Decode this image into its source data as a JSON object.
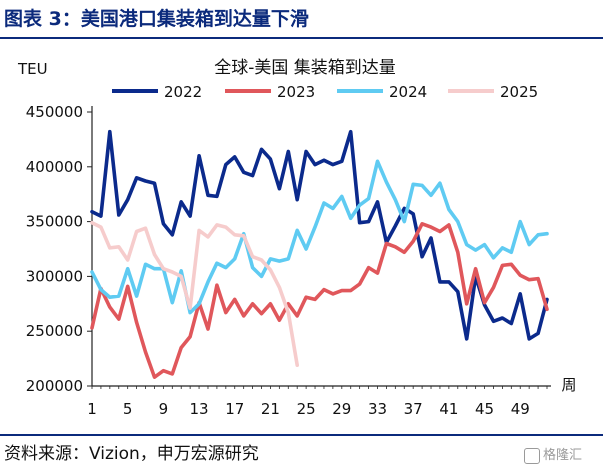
{
  "figure_title": "图表 3：美国港口集装箱到达量下滑",
  "source_text": "资料来源：Vizion，申万宏源研究",
  "watermark_text": "格隆汇",
  "chart_data": {
    "type": "line",
    "title": "全球-美国 集装箱到达量",
    "ylabel": "TEU",
    "xlabel": "周",
    "ylim": [
      200000,
      450000
    ],
    "yticks": [
      200000,
      250000,
      300000,
      350000,
      400000,
      450000
    ],
    "xlim": [
      1,
      52
    ],
    "xticks": [
      1,
      5,
      9,
      13,
      17,
      21,
      25,
      29,
      33,
      37,
      41,
      45,
      49
    ],
    "legend_position": "top",
    "series": [
      {
        "name": "2022",
        "color": "#0b2a8c",
        "x": [
          1,
          2,
          3,
          4,
          5,
          6,
          7,
          8,
          9,
          10,
          11,
          12,
          13,
          14,
          15,
          16,
          17,
          18,
          19,
          20,
          21,
          22,
          23,
          24,
          25,
          26,
          27,
          28,
          29,
          30,
          31,
          32,
          33,
          34,
          35,
          36,
          37,
          38,
          39,
          40,
          41,
          42,
          43,
          44,
          45,
          46,
          47,
          48,
          49,
          50,
          51,
          52
        ],
        "y": [
          359000,
          355000,
          432000,
          356000,
          370000,
          390000,
          387000,
          385000,
          348000,
          338000,
          368000,
          355000,
          410000,
          374000,
          373000,
          402000,
          409000,
          395000,
          392000,
          416000,
          407000,
          380000,
          414000,
          370000,
          414000,
          402000,
          406000,
          402000,
          405000,
          432000,
          349000,
          350000,
          368000,
          331000,
          346000,
          362000,
          357000,
          318000,
          335000,
          295000,
          295000,
          286000,
          243000,
          300000,
          274000,
          259000,
          262000,
          257000,
          284000,
          243000,
          248000,
          279000
        ]
      },
      {
        "name": "2023",
        "color": "#e0575b",
        "x": [
          1,
          2,
          3,
          4,
          5,
          6,
          7,
          8,
          9,
          10,
          11,
          12,
          13,
          14,
          15,
          16,
          17,
          18,
          19,
          20,
          21,
          22,
          23,
          24,
          25,
          26,
          27,
          28,
          29,
          30,
          31,
          32,
          33,
          34,
          35,
          36,
          37,
          38,
          39,
          40,
          41,
          42,
          43,
          44,
          45,
          46,
          47,
          48,
          49,
          50,
          51,
          52
        ],
        "y": [
          253000,
          289000,
          272000,
          261000,
          291000,
          258000,
          231000,
          208000,
          214000,
          211000,
          235000,
          245000,
          276000,
          252000,
          292000,
          267000,
          279000,
          264000,
          275000,
          266000,
          275000,
          260000,
          275000,
          264000,
          281000,
          279000,
          288000,
          284000,
          287000,
          287000,
          293000,
          308000,
          303000,
          330000,
          327000,
          322000,
          332000,
          348000,
          345000,
          341000,
          347000,
          322000,
          275000,
          307000,
          276000,
          290000,
          310000,
          311000,
          301000,
          297000,
          298000,
          270000
        ]
      },
      {
        "name": "2024",
        "color": "#5fcbf2",
        "x": [
          1,
          2,
          3,
          4,
          5,
          6,
          7,
          8,
          9,
          10,
          11,
          12,
          13,
          14,
          15,
          16,
          17,
          18,
          19,
          20,
          21,
          22,
          23,
          24,
          25,
          26,
          27,
          28,
          29,
          30,
          31,
          32,
          33,
          34,
          35,
          36,
          37,
          38,
          39,
          40,
          41,
          42,
          43,
          44,
          45,
          46,
          47,
          48,
          49,
          50,
          51,
          52
        ],
        "y": [
          304000,
          288000,
          281000,
          282000,
          307000,
          282000,
          311000,
          307000,
          307000,
          276000,
          305000,
          267000,
          275000,
          295000,
          312000,
          308000,
          316000,
          339000,
          308000,
          300000,
          316000,
          314000,
          316000,
          342000,
          325000,
          345000,
          367000,
          362000,
          373000,
          353000,
          365000,
          371000,
          405000,
          386000,
          370000,
          350000,
          384000,
          383000,
          374000,
          385000,
          361000,
          350000,
          329000,
          324000,
          329000,
          317000,
          326000,
          322000,
          350000,
          329000,
          338000,
          339000
        ]
      },
      {
        "name": "2025",
        "color": "#f6cccc",
        "x": [
          1,
          2,
          3,
          4,
          5,
          6,
          7,
          8,
          9,
          10,
          11,
          12,
          13,
          14,
          15,
          16,
          17,
          18,
          19,
          20,
          21,
          22,
          23,
          24
        ],
        "y": [
          349000,
          345000,
          326000,
          327000,
          315000,
          341000,
          344000,
          320000,
          307000,
          304000,
          300000,
          271000,
          342000,
          336000,
          347000,
          345000,
          338000,
          337000,
          318000,
          315000,
          306000,
          290000,
          267000,
          219000
        ]
      }
    ]
  }
}
